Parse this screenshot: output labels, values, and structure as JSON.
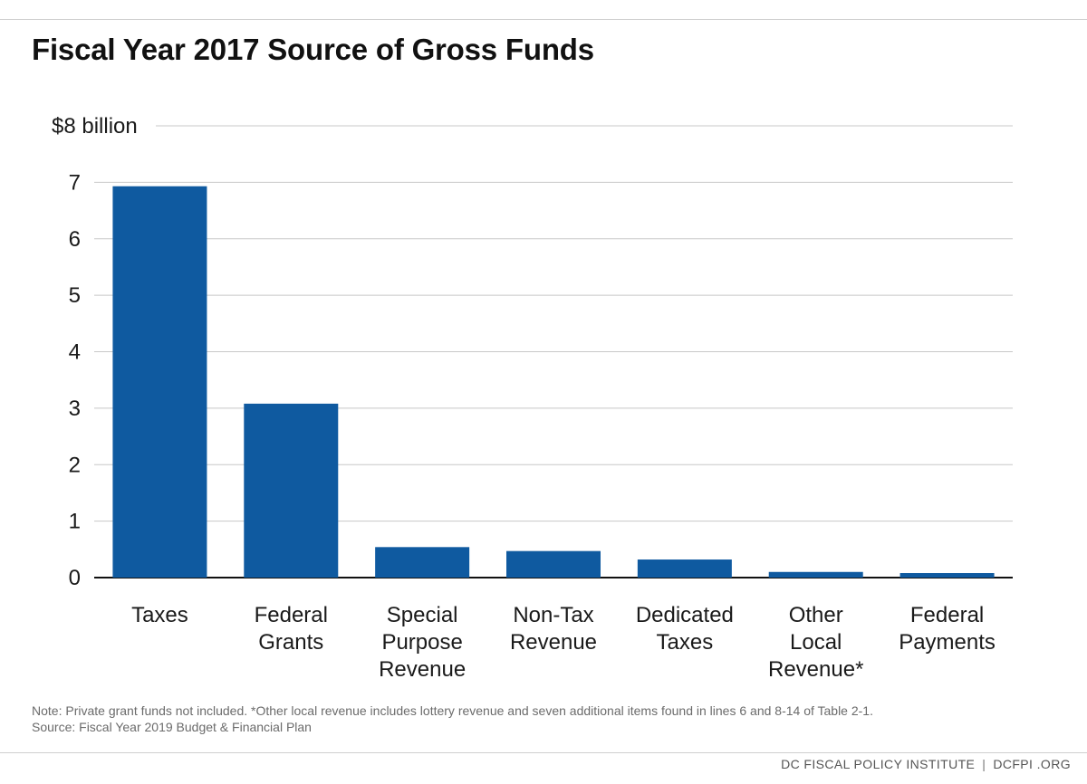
{
  "chart_data": {
    "type": "bar",
    "title": "Fiscal Year 2017 Source of Gross Funds",
    "categories": [
      [
        "Taxes"
      ],
      [
        "Federal",
        "Grants"
      ],
      [
        "Special",
        "Purpose",
        "Revenue"
      ],
      [
        "Non-Tax",
        "Revenue"
      ],
      [
        "Dedicated",
        "Taxes"
      ],
      [
        "Other",
        "Local",
        "Revenue*"
      ],
      [
        "Federal",
        "Payments"
      ]
    ],
    "values": [
      6.93,
      3.08,
      0.54,
      0.47,
      0.32,
      0.1,
      0.08
    ],
    "ylim": [
      0,
      8
    ],
    "yticks": [
      0,
      1,
      2,
      3,
      4,
      5,
      6,
      7,
      8
    ],
    "ytick_labels": [
      "0",
      "1",
      "2",
      "3",
      "4",
      "5",
      "6",
      "7",
      "$8 billion"
    ],
    "xlabel": "",
    "ylabel": "",
    "grid": true,
    "bar_color": "#0f5aa0"
  },
  "note": {
    "line1": "Note: Private grant funds not included. *Other local revenue includes lottery revenue and seven additional items found in lines 6 and 8-14 of Table 2-1.",
    "line2": "Source: Fiscal Year 2019 Budget & Financial Plan"
  },
  "footer": {
    "org": "DC FISCAL POLICY INSTITUTE",
    "separator": "|",
    "site": "DCFPI .ORG"
  }
}
